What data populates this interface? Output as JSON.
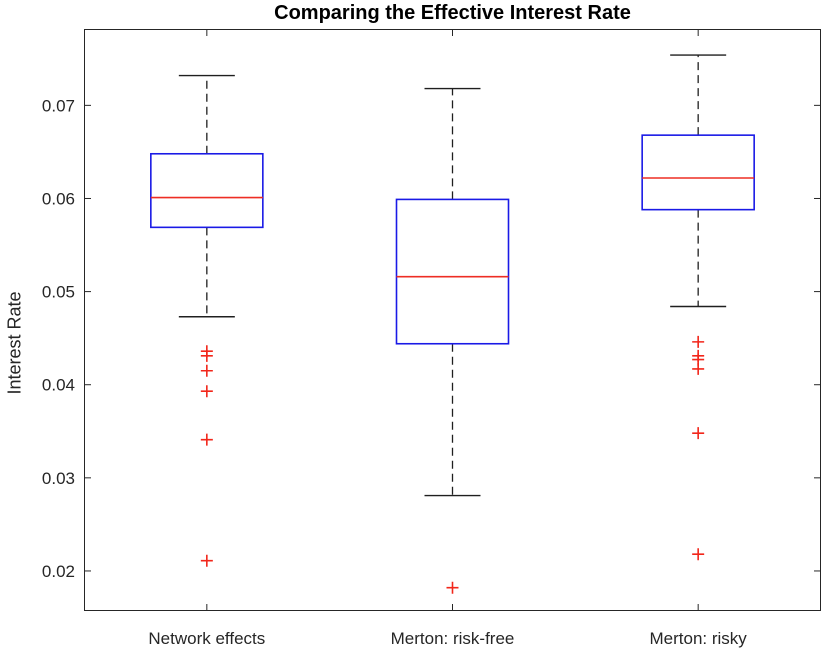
{
  "chart_data": {
    "type": "boxplot",
    "title": "Comparing the Effective Interest Rate",
    "ylabel": "Interest Rate",
    "xlabel": "",
    "categories": [
      "Network effects",
      "Merton: risk-free",
      "Merton: risky"
    ],
    "ylim": [
      0.0157,
      0.0782
    ],
    "yticks": [
      0.02,
      0.03,
      0.04,
      0.05,
      0.06,
      0.07
    ],
    "ytick_decimals": 2,
    "grid": false,
    "legend": "none",
    "boxes": [
      {
        "category": "Network effects",
        "whisker_low": 0.0473,
        "q1": 0.0569,
        "median": 0.0601,
        "q3": 0.0648,
        "whisker_high": 0.0732,
        "outliers": [
          0.0436,
          0.0431,
          0.0415,
          0.0393,
          0.0341,
          0.0211
        ]
      },
      {
        "category": "Merton: risk-free",
        "whisker_low": 0.0281,
        "q1": 0.0444,
        "median": 0.0516,
        "q3": 0.0599,
        "whisker_high": 0.0718,
        "outliers": [
          0.0182
        ]
      },
      {
        "category": "Merton: risky",
        "whisker_low": 0.0484,
        "q1": 0.0588,
        "median": 0.0622,
        "q3": 0.0668,
        "whisker_high": 0.0754,
        "outliers": [
          0.0446,
          0.0431,
          0.0427,
          0.0417,
          0.0348,
          0.0218
        ]
      }
    ],
    "colors": {
      "box": "#1a1ae6",
      "median": "#ee2e24",
      "outlier": "#f2261a",
      "whisker": "#1f1f1f",
      "cap": "#1f1f1f",
      "axis": "#262626",
      "tick_label": "#262626",
      "title": "#000000",
      "background": "#ffffff"
    }
  }
}
